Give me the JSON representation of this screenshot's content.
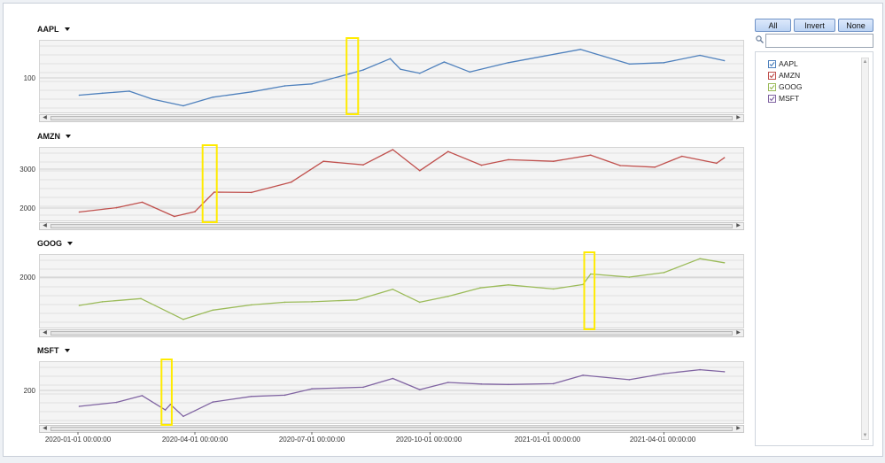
{
  "panels": [
    {
      "title": "AAPL",
      "color": "#4f81bd",
      "yticks": [
        {
          "label": "100",
          "value": 100
        }
      ]
    },
    {
      "title": "AMZN",
      "color": "#c0504d",
      "yticks": [
        {
          "label": "3000",
          "value": 3000
        },
        {
          "label": "2000",
          "value": 2000
        }
      ]
    },
    {
      "title": "GOOG",
      "color": "#9bbb59",
      "yticks": [
        {
          "label": "2000",
          "value": 2000
        }
      ]
    },
    {
      "title": "MSFT",
      "color": "#8064a2",
      "yticks": [
        {
          "label": "200",
          "value": 200
        }
      ]
    }
  ],
  "xticks": [
    "2020-01-01 00:00:00",
    "2020-04-01 00:00:00",
    "2020-07-01 00:00:00",
    "2020-10-01 00:00:00",
    "2021-01-01 00:00:00",
    "2021-04-01 00:00:00"
  ],
  "buttons": {
    "all": "All",
    "invert": "Invert",
    "none": "None"
  },
  "search": {
    "value": "",
    "placeholder": ""
  },
  "legend": [
    {
      "label": "AAPL",
      "color": "#4f81bd",
      "checked": true
    },
    {
      "label": "AMZN",
      "color": "#c0504d",
      "checked": true
    },
    {
      "label": "GOOG",
      "color": "#9bbb59",
      "checked": true
    },
    {
      "label": "MSFT",
      "color": "#8064a2",
      "checked": true
    }
  ],
  "highlight_color": "#ffeb00",
  "chart_data": [
    {
      "type": "line",
      "title": "AAPL",
      "series": [
        {
          "name": "AAPL",
          "color": "#4f81bd",
          "x": [
            "2020-01-02",
            "2020-01-20",
            "2020-02-10",
            "2020-02-28",
            "2020-03-23",
            "2020-04-15",
            "2020-05-15",
            "2020-06-10",
            "2020-07-01",
            "2020-07-30",
            "2020-08-10",
            "2020-08-31",
            "2020-09-08",
            "2020-09-23",
            "2020-10-12",
            "2020-11-01",
            "2020-12-01",
            "2021-01-26",
            "2021-03-05",
            "2021-04-01",
            "2021-04-29",
            "2021-05-18"
          ],
          "values": [
            74,
            77,
            80,
            68,
            58,
            71,
            79,
            88,
            91,
            106,
            112,
            129,
            113,
            107,
            124,
            109,
            123,
            143,
            121,
            123,
            134,
            126
          ]
        }
      ],
      "highlight": {
        "from": "2020-07-28",
        "to": "2020-08-06"
      }
    },
    {
      "type": "line",
      "title": "AMZN",
      "series": [
        {
          "name": "AMZN",
          "color": "#c0504d",
          "x": [
            "2020-01-02",
            "2020-01-31",
            "2020-02-20",
            "2020-03-16",
            "2020-04-01",
            "2020-04-16",
            "2020-05-15",
            "2020-06-15",
            "2020-07-10",
            "2020-08-10",
            "2020-09-02",
            "2020-09-23",
            "2020-10-15",
            "2020-11-10",
            "2020-12-01",
            "2021-01-05",
            "2021-02-03",
            "2021-02-26",
            "2021-03-25",
            "2021-04-15",
            "2021-05-12",
            "2021-05-18"
          ],
          "values": [
            1898,
            2008,
            2150,
            1785,
            1907,
            2408,
            2400,
            2665,
            3200,
            3110,
            3499,
            2960,
            3450,
            3100,
            3240,
            3200,
            3360,
            3090,
            3050,
            3330,
            3150,
            3290
          ]
        }
      ],
      "highlight": {
        "from": "2020-04-07",
        "to": "2020-04-18"
      }
    },
    {
      "type": "line",
      "title": "GOOG",
      "series": [
        {
          "name": "GOOG",
          "color": "#9bbb59",
          "x": [
            "2020-01-02",
            "2020-01-20",
            "2020-02-19",
            "2020-03-23",
            "2020-04-15",
            "2020-05-15",
            "2020-06-10",
            "2020-07-01",
            "2020-08-05",
            "2020-09-02",
            "2020-09-23",
            "2020-10-15",
            "2020-11-09",
            "2020-12-01",
            "2021-01-05",
            "2021-01-28",
            "2021-02-03",
            "2021-03-05",
            "2021-04-01",
            "2021-04-29",
            "2021-05-18"
          ],
          "values": [
            1368,
            1450,
            1520,
            1056,
            1263,
            1380,
            1440,
            1450,
            1490,
            1728,
            1440,
            1570,
            1760,
            1827,
            1735,
            1835,
            2070,
            2000,
            2100,
            2410,
            2320
          ]
        }
      ],
      "highlight": {
        "from": "2021-01-29",
        "to": "2021-02-06"
      }
    },
    {
      "type": "line",
      "title": "MSFT",
      "series": [
        {
          "name": "MSFT",
          "color": "#8064a2",
          "x": [
            "2020-01-02",
            "2020-01-31",
            "2020-02-20",
            "2020-03-09",
            "2020-03-13",
            "2020-03-23",
            "2020-04-15",
            "2020-05-15",
            "2020-06-10",
            "2020-07-01",
            "2020-08-10",
            "2020-09-02",
            "2020-09-23",
            "2020-10-15",
            "2020-11-10",
            "2020-12-01",
            "2021-01-05",
            "2021-01-28",
            "2021-03-05",
            "2021-04-01",
            "2021-04-29",
            "2021-05-18"
          ],
          "values": [
            160,
            170,
            187,
            151,
            165,
            135,
            171,
            185,
            188,
            204,
            208,
            230,
            202,
            220,
            216,
            215,
            217,
            238,
            227,
            242,
            252,
            247
          ]
        }
      ],
      "highlight": {
        "from": "2020-03-06",
        "to": "2020-03-14"
      }
    }
  ]
}
